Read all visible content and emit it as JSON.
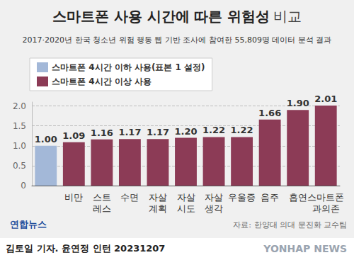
{
  "chart_data": {
    "type": "bar",
    "title": "스마트폰 사용 시간에 따른 위험성 비교",
    "subtitle": "2017·2020년 한국 청소년 위험 행동 웹 기반 조사에 참여한 55,809명 데이터 분석 결과",
    "categories": [
      null,
      "비만",
      "스트\n레스",
      "수면",
      "자살\n계획",
      "자살\n시도",
      "자살\n생각",
      "우울증",
      "음주",
      "흡연",
      "스마트폰\n과의존"
    ],
    "series": [
      {
        "name": "스마트폰 4시간 이하 사용(표본 1 설정)",
        "color": "#a3b8d8",
        "values": [
          1.0,
          null,
          null,
          null,
          null,
          null,
          null,
          null,
          null,
          null,
          null
        ],
        "value_labels": [
          "1.00",
          null,
          null,
          null,
          null,
          null,
          null,
          null,
          null,
          null,
          null
        ]
      },
      {
        "name": "스마트폰 4시간 이상 사용",
        "color": "#8c3b56",
        "values": [
          null,
          1.09,
          1.16,
          1.17,
          1.17,
          1.2,
          1.22,
          1.22,
          1.66,
          1.9,
          2.01
        ],
        "value_labels": [
          null,
          "1.09",
          "1.16",
          "1.17",
          "1.17",
          "1.20",
          "1.22",
          "1.22",
          "1.66",
          "1.90",
          "2.01"
        ]
      }
    ],
    "ylim": [
      0,
      2.1
    ],
    "yticks": [
      0,
      0.5,
      {
        "value": 1,
        "label": "1.0"
      },
      1.5,
      {
        "value": 2,
        "label": "2.0"
      }
    ],
    "grid": true,
    "legend": "top-left",
    "data_labels": true,
    "annotations": [
      "자료: 한양대 의대 문진화 교수팀",
      "김토일 기자. 윤연정 인턴 20231207",
      "연합뉴스",
      "YONHAP NEWS"
    ]
  }
}
